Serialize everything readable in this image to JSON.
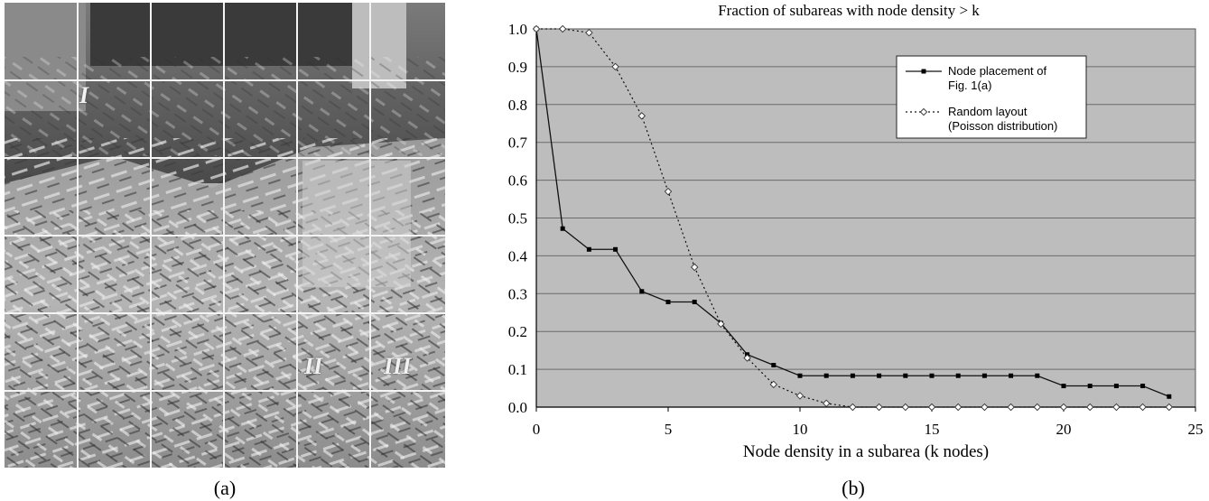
{
  "panel_a": {
    "caption": "(a)",
    "region_labels": [
      "I",
      "II",
      "III"
    ],
    "grid": {
      "rows": 6,
      "cols": 6
    }
  },
  "panel_b": {
    "caption": "(b)"
  },
  "chart_data": {
    "type": "line",
    "title": "Fraction of subareas with node density > k",
    "xlabel": "Node density in a subarea (k  nodes)",
    "ylabel": "",
    "xlim": [
      0,
      25
    ],
    "ylim": [
      0,
      1
    ],
    "x_ticks": [
      "0",
      "5",
      "10",
      "15",
      "20",
      "25"
    ],
    "y_ticks": [
      "0.0",
      "0.1",
      "0.2",
      "0.3",
      "0.4",
      "0.5",
      "0.6",
      "0.7",
      "0.8",
      "0.9",
      "1.0"
    ],
    "grid": "horizontal",
    "legend_position": "top-right",
    "plot_background": "#bdbdbd",
    "series": [
      {
        "name": "Node placement of Fig. 1(a)",
        "legend_lines": [
          "Node placement of",
          "Fig. 1(a)"
        ],
        "style": "solid",
        "marker": "filled-square",
        "x": [
          0,
          1,
          2,
          3,
          4,
          5,
          6,
          7,
          8,
          9,
          10,
          11,
          12,
          13,
          14,
          15,
          16,
          17,
          18,
          19,
          20,
          21,
          22,
          23,
          24
        ],
        "values": [
          1.0,
          0.472,
          0.417,
          0.417,
          0.306,
          0.278,
          0.278,
          0.222,
          0.139,
          0.111,
          0.083,
          0.083,
          0.083,
          0.083,
          0.083,
          0.083,
          0.083,
          0.083,
          0.083,
          0.083,
          0.056,
          0.056,
          0.056,
          0.056,
          0.028
        ]
      },
      {
        "name": "Random layout (Poisson distribution)",
        "legend_lines": [
          "Random layout",
          "(Poisson distribution)"
        ],
        "style": "dotted",
        "marker": "open-diamond",
        "x": [
          0,
          1,
          2,
          3,
          4,
          5,
          6,
          7,
          8,
          9,
          10,
          11,
          12,
          13,
          14,
          15,
          16,
          17,
          18,
          19,
          20,
          21,
          22,
          23,
          24
        ],
        "values": [
          1.0,
          1.0,
          0.99,
          0.9,
          0.77,
          0.57,
          0.37,
          0.22,
          0.13,
          0.06,
          0.03,
          0.01,
          0.0,
          0.0,
          0.0,
          0.0,
          0.0,
          0.0,
          0.0,
          0.0,
          0.0,
          0.0,
          0.0,
          0.0,
          0.0
        ]
      }
    ]
  }
}
